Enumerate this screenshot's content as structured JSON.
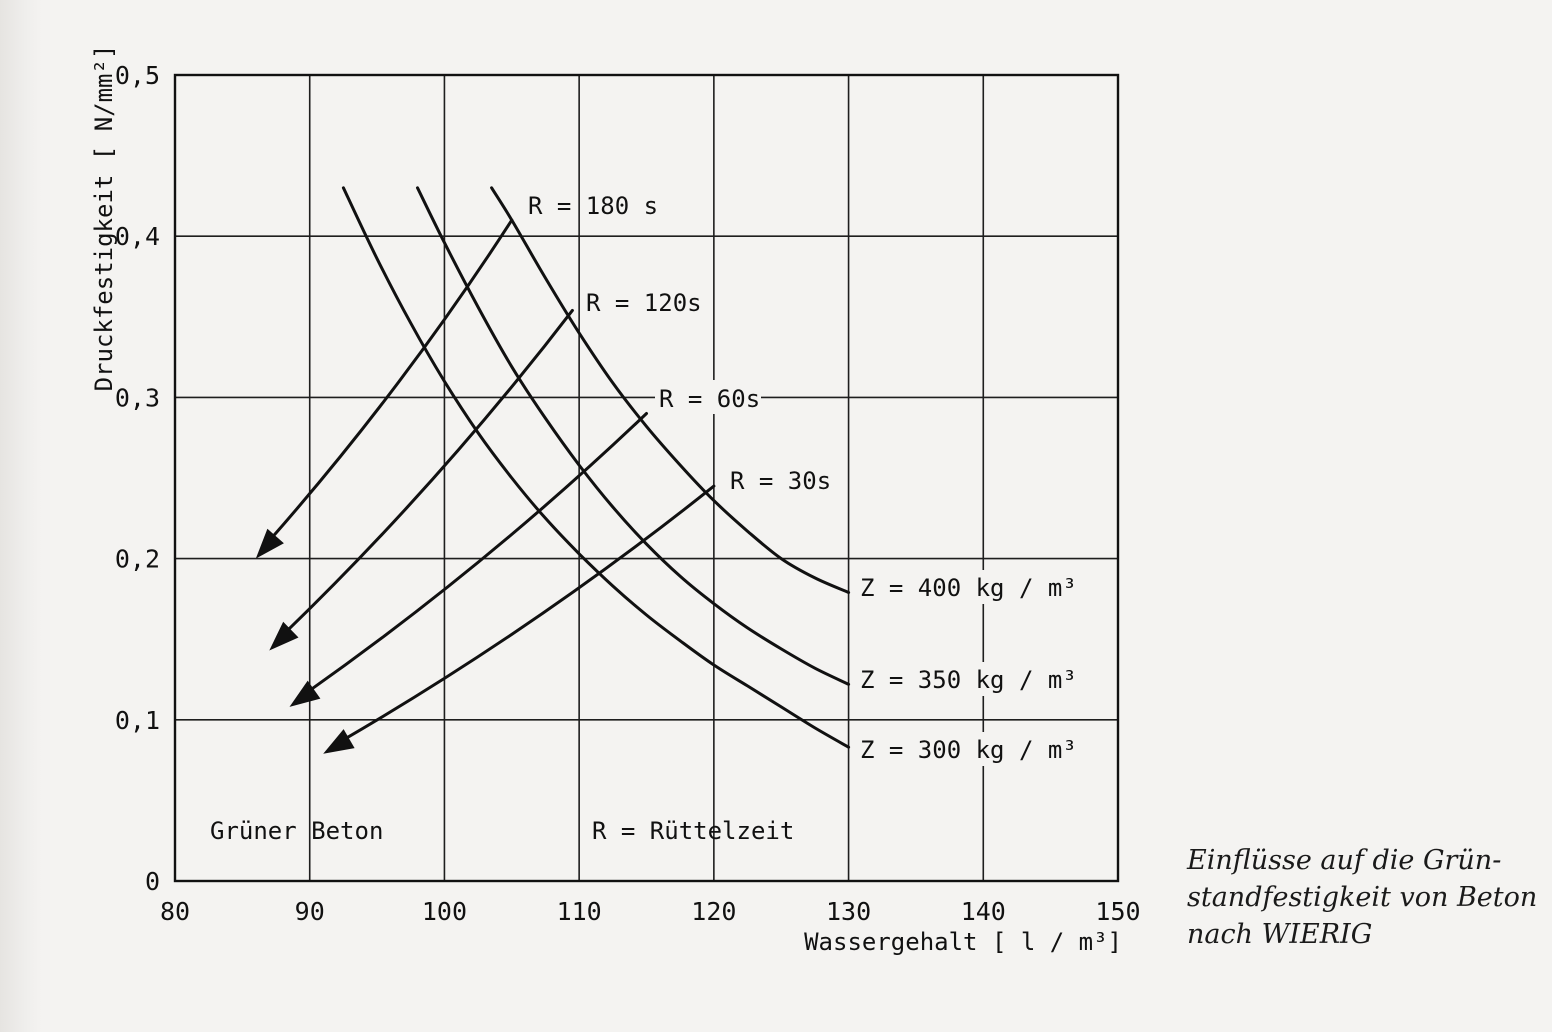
{
  "chart_data": {
    "type": "line",
    "title": "",
    "xlabel": "Wassergehalt [ l / m³]",
    "ylabel": "Druckfestigkeit [ N/mm²]",
    "xlim": [
      80,
      150
    ],
    "ylim": [
      0,
      0.5
    ],
    "x_ticks": [
      80,
      90,
      100,
      110,
      120,
      130,
      140,
      150
    ],
    "x_tick_labels": [
      "80",
      "90",
      "100",
      "110",
      "120",
      "130",
      "140",
      "150"
    ],
    "y_ticks": [
      0,
      0.1,
      0.2,
      0.3,
      0.4,
      0.5
    ],
    "y_tick_labels": [
      "0",
      "0,1",
      "0,2",
      "0,3",
      "0,4",
      "0,5"
    ],
    "grid": true,
    "series": [
      {
        "name": "Z = 400 kg / m³",
        "x": [
          103.5,
          105,
          107.5,
          110,
          112.5,
          115,
          117.5,
          120,
          122.5,
          125,
          127.5,
          130
        ],
        "y": [
          0.43,
          0.41,
          0.374,
          0.34,
          0.309,
          0.282,
          0.258,
          0.236,
          0.217,
          0.2,
          0.188,
          0.179
        ]
      },
      {
        "name": "Z = 350 kg / m³",
        "x": [
          98,
          100,
          102.5,
          105,
          107.5,
          110,
          112.5,
          115,
          117.5,
          120,
          122.5,
          125,
          127.5,
          130
        ],
        "y": [
          0.43,
          0.396,
          0.356,
          0.319,
          0.287,
          0.258,
          0.232,
          0.209,
          0.189,
          0.172,
          0.157,
          0.144,
          0.132,
          0.122
        ]
      },
      {
        "name": "Z = 300 kg / m³",
        "x": [
          92.5,
          95,
          97.5,
          100,
          102.5,
          105,
          107.5,
          110,
          112.5,
          115,
          117.5,
          120,
          122.5,
          125,
          127.5,
          130
        ],
        "y": [
          0.43,
          0.386,
          0.346,
          0.31,
          0.278,
          0.25,
          0.225,
          0.203,
          0.183,
          0.165,
          0.149,
          0.134,
          0.121,
          0.108,
          0.095,
          0.083
        ]
      }
    ],
    "arrows": [
      {
        "name": "R = 180 s",
        "from": [
          105,
          0.41
        ],
        "to": [
          86,
          0.2
        ]
      },
      {
        "name": "R = 120s",
        "from": [
          109.5,
          0.354
        ],
        "to": [
          87,
          0.143
        ]
      },
      {
        "name": "R = 60s",
        "from": [
          115,
          0.29
        ],
        "to": [
          88.5,
          0.108
        ]
      },
      {
        "name": "R = 30s",
        "from": [
          120,
          0.245
        ],
        "to": [
          91,
          0.079
        ]
      }
    ],
    "annotations": [
      "Grüner Beton",
      "R = Rüttelzeit"
    ]
  },
  "caption": {
    "line1": "Einflüsse auf die Grün-",
    "line2": "standfestigkeit von Beton",
    "line3": "nach WIERIG"
  }
}
